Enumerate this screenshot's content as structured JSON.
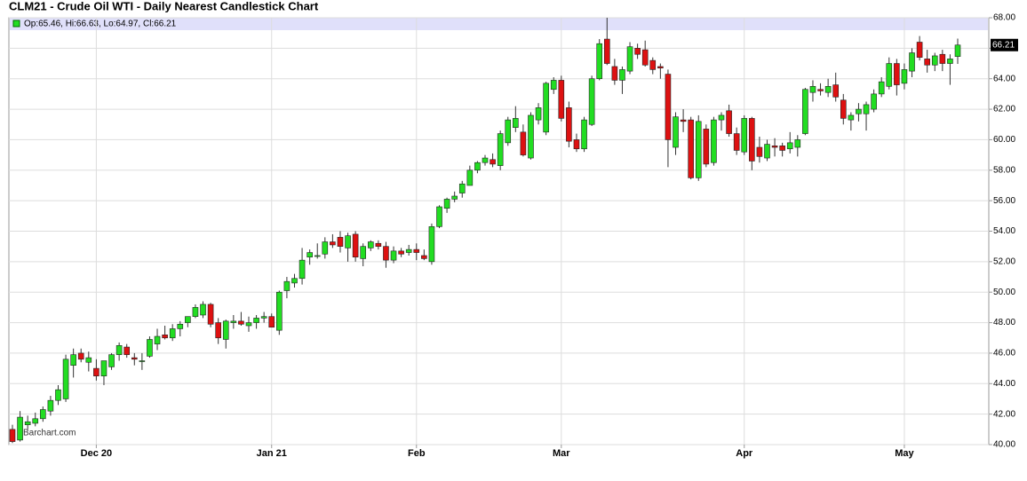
{
  "chart_data": {
    "type": "candlestick",
    "title": "CLM21 - Crude Oil WTI - Daily Nearest Candlestick Chart",
    "info": "Op:65.46, Hi:66.63, Lo:64.97, Cl:66.21",
    "watermark": "Barchart.com",
    "up_color": "#22dd22",
    "down_color": "#dd1111",
    "ylim": [
      40,
      68
    ],
    "yticks": [
      {
        "value": 40,
        "label": "40.00"
      },
      {
        "value": 42,
        "label": "42.00"
      },
      {
        "value": 44,
        "label": "44.00"
      },
      {
        "value": 46,
        "label": "46.00"
      },
      {
        "value": 48,
        "label": "48.00"
      },
      {
        "value": 50,
        "label": "50.00"
      },
      {
        "value": 52,
        "label": "52.00"
      },
      {
        "value": 54,
        "label": "54.00"
      },
      {
        "value": 56,
        "label": "56.00"
      },
      {
        "value": 58,
        "label": "58.00"
      },
      {
        "value": 60,
        "label": "60.00"
      },
      {
        "value": 62,
        "label": "62.00"
      },
      {
        "value": 64,
        "label": "64.00"
      },
      {
        "value": 66,
        "label": "66.00"
      },
      {
        "value": 68,
        "label": "68.00"
      }
    ],
    "grid": true,
    "categories": [
      null,
      null,
      null,
      null,
      null,
      null,
      null,
      null,
      null,
      null,
      null,
      "Dec 20",
      null,
      null,
      null,
      null,
      null,
      null,
      null,
      null,
      null,
      null,
      null,
      null,
      null,
      null,
      null,
      null,
      null,
      null,
      null,
      null,
      null,
      null,
      "Jan 21",
      null,
      null,
      null,
      null,
      null,
      null,
      null,
      null,
      null,
      null,
      null,
      null,
      null,
      null,
      null,
      null,
      null,
      null,
      "Feb",
      null,
      null,
      null,
      null,
      null,
      null,
      null,
      null,
      null,
      null,
      null,
      null,
      null,
      null,
      null,
      null,
      null,
      null,
      "Mar",
      null,
      null,
      null,
      null,
      null,
      null,
      null,
      null,
      null,
      null,
      null,
      null,
      null,
      null,
      null,
      null,
      null,
      null,
      null,
      null,
      null,
      null,
      null,
      "Apr",
      null,
      null,
      null,
      null,
      null,
      null,
      null,
      null,
      null,
      null,
      null,
      null,
      null,
      null,
      null,
      null,
      null,
      null,
      null,
      null,
      "May",
      null,
      null,
      null,
      null,
      null,
      null,
      null
    ],
    "open": [
      41.0,
      40.3,
      41.3,
      41.4,
      41.7,
      42.2,
      42.9,
      43.0,
      45.2,
      46.0,
      45.4,
      45.0,
      44.5,
      45.1,
      45.9,
      46.4,
      45.7,
      45.5,
      45.8,
      46.6,
      47.2,
      47.0,
      47.6,
      48.0,
      48.4,
      48.5,
      49.2,
      48.0,
      46.9,
      48.0,
      48.1,
      47.8,
      48.0,
      48.3,
      48.4,
      47.5,
      50.1,
      50.6,
      50.9,
      52.3,
      52.4,
      52.5,
      53.3,
      53.6,
      52.9,
      53.8,
      52.2,
      52.9,
      53.2,
      53.0,
      52.1,
      52.7,
      52.6,
      52.8,
      52.4,
      52.0,
      54.3,
      55.5,
      56.1,
      56.5,
      57.0,
      58.0,
      58.5,
      58.7,
      58.3,
      59.8,
      60.8,
      60.5,
      58.8,
      61.3,
      60.5,
      63.3,
      63.9,
      62.1,
      60.0,
      59.4,
      61.0,
      64.0,
      66.6,
      64.8,
      63.9,
      64.5,
      66.0,
      65.9,
      65.2,
      64.8,
      64.3,
      59.5,
      61.3,
      61.3,
      57.5,
      60.7,
      58.5,
      61.3,
      61.9,
      60.4,
      59.2,
      61.4,
      59.5,
      58.8,
      59.6,
      59.6,
      59.4,
      59.5,
      60.4,
      63.1,
      63.3,
      63.1,
      63.6,
      62.6,
      61.3,
      61.7,
      61.7,
      62.0,
      63.0,
      63.5,
      65.0,
      63.7,
      64.5,
      66.4,
      65.3,
      64.9,
      65.6,
      65.0,
      65.46
    ],
    "high": [
      41.3,
      42.2,
      41.9,
      42.1,
      42.5,
      43.2,
      43.9,
      45.9,
      46.3,
      46.3,
      46.1,
      45.6,
      45.5,
      46.0,
      46.7,
      46.6,
      46.0,
      46.0,
      47.1,
      47.6,
      47.8,
      47.9,
      48.1,
      48.4,
      49.2,
      49.4,
      49.3,
      48.3,
      48.2,
      48.5,
      48.7,
      48.4,
      48.5,
      48.7,
      48.6,
      50.1,
      51.0,
      51.2,
      52.9,
      52.8,
      53.2,
      53.6,
      53.8,
      54.0,
      53.9,
      54.0,
      53.2,
      53.4,
      53.4,
      53.3,
      53.0,
      52.9,
      53.1,
      53.2,
      52.8,
      54.5,
      55.7,
      56.2,
      56.6,
      57.3,
      58.3,
      58.6,
      59.0,
      59.1,
      60.6,
      61.5,
      62.2,
      61.0,
      61.8,
      62.4,
      63.8,
      64.1,
      64.2,
      62.5,
      60.4,
      61.5,
      64.2,
      66.6,
      68.0,
      65.3,
      64.8,
      66.4,
      66.3,
      66.5,
      65.4,
      65.0,
      64.6,
      61.8,
      62.0,
      61.5,
      61.6,
      61.0,
      61.5,
      61.8,
      62.3,
      60.8,
      61.6,
      61.5,
      60.2,
      60.0,
      60.1,
      59.8,
      60.5,
      60.3,
      63.4,
      63.9,
      63.7,
      64.0,
      64.4,
      63.0,
      61.8,
      62.4,
      62.5,
      63.3,
      64.1,
      65.4,
      65.3,
      65.0,
      66.0,
      66.8,
      65.9,
      65.7,
      65.9,
      65.6,
      66.63
    ],
    "low": [
      40.1,
      40.2,
      41.0,
      41.2,
      41.5,
      41.9,
      42.6,
      42.8,
      44.4,
      45.4,
      44.8,
      44.2,
      43.9,
      44.9,
      45.5,
      45.7,
      45.2,
      44.9,
      45.7,
      46.2,
      46.9,
      46.8,
      47.1,
      47.7,
      48.3,
      48.3,
      47.7,
      46.6,
      46.3,
      47.6,
      47.8,
      47.4,
      47.6,
      48.0,
      47.7,
      47.2,
      49.6,
      50.3,
      50.5,
      51.8,
      52.2,
      52.2,
      52.9,
      52.6,
      52.0,
      52.0,
      51.7,
      52.7,
      52.8,
      51.6,
      51.9,
      52.3,
      52.4,
      52.1,
      52.1,
      51.8,
      54.2,
      55.2,
      55.9,
      56.2,
      57.0,
      57.8,
      58.3,
      58.2,
      58.0,
      59.6,
      60.5,
      58.9,
      58.7,
      61.0,
      60.3,
      63.0,
      61.2,
      59.5,
      59.2,
      59.2,
      60.9,
      63.9,
      64.9,
      63.6,
      63.0,
      64.3,
      65.3,
      64.8,
      64.3,
      64.0,
      58.2,
      59.0,
      60.5,
      57.4,
      57.3,
      58.2,
      58.3,
      60.6,
      60.2,
      59.0,
      59.0,
      58.0,
      58.5,
      58.6,
      58.9,
      58.9,
      59.1,
      58.9,
      60.3,
      62.5,
      62.9,
      62.8,
      62.5,
      61.0,
      60.6,
      61.2,
      60.6,
      61.8,
      62.8,
      63.3,
      62.9,
      63.3,
      64.1,
      65.2,
      64.4,
      64.5,
      64.5,
      63.6,
      64.97
    ],
    "close": [
      40.2,
      41.8,
      41.5,
      41.7,
      42.3,
      42.9,
      43.6,
      45.6,
      45.9,
      45.6,
      45.7,
      44.5,
      45.5,
      45.9,
      46.5,
      45.9,
      45.6,
      45.5,
      46.9,
      47.1,
      47.0,
      47.6,
      47.9,
      48.4,
      49.0,
      49.2,
      47.9,
      47.0,
      48.1,
      48.1,
      47.9,
      48.0,
      48.3,
      48.4,
      47.7,
      50.0,
      50.7,
      50.9,
      52.1,
      52.6,
      52.4,
      53.3,
      53.1,
      53.0,
      53.7,
      52.3,
      53.0,
      53.3,
      53.0,
      52.1,
      52.7,
      52.5,
      52.8,
      52.6,
      52.2,
      54.3,
      55.6,
      56.1,
      56.3,
      57.1,
      58.0,
      58.5,
      58.8,
      58.4,
      60.4,
      61.3,
      61.4,
      59.0,
      61.6,
      62.1,
      63.7,
      63.9,
      61.4,
      59.9,
      59.4,
      61.3,
      64.0,
      66.3,
      65.0,
      63.9,
      64.6,
      66.1,
      65.6,
      64.9,
      64.6,
      64.7,
      60.0,
      61.5,
      61.2,
      57.5,
      61.2,
      58.4,
      61.3,
      61.6,
      60.4,
      59.3,
      61.4,
      58.6,
      58.9,
      59.7,
      59.5,
      59.3,
      59.8,
      60.0,
      63.3,
      63.5,
      63.2,
      63.5,
      62.8,
      61.4,
      61.6,
      62.0,
      62.3,
      63.0,
      63.8,
      65.0,
      63.6,
      64.6,
      65.7,
      65.4,
      64.9,
      65.5,
      65.0,
      65.3,
      66.21
    ]
  }
}
